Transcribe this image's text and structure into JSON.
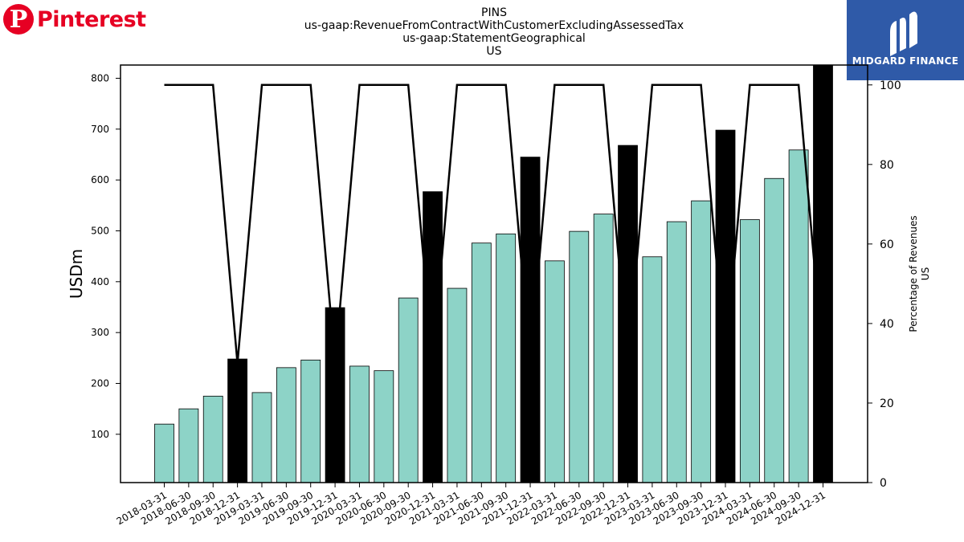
{
  "brand_left": {
    "icon": "P",
    "name": "Pinterest",
    "color": "#e60023"
  },
  "brand_right": {
    "name": "MIDGARD FINANCE",
    "color": "#2f5aa8"
  },
  "title_lines": [
    "PINS",
    "us-gaap:RevenueFromContractWithCustomerExcludingAssessedTax",
    "us-gaap:StatementGeographical",
    "US"
  ],
  "chart_data": {
    "type": "bar",
    "categories": [
      "2018-03-31",
      "2018-06-30",
      "2018-09-30",
      "2018-12-31",
      "2019-03-31",
      "2019-06-30",
      "2019-09-30",
      "2019-12-31",
      "2020-03-31",
      "2020-06-30",
      "2020-09-30",
      "2020-12-31",
      "2021-03-31",
      "2021-06-30",
      "2021-09-30",
      "2021-12-31",
      "2022-03-31",
      "2022-06-30",
      "2022-09-30",
      "2022-12-31",
      "2023-03-31",
      "2023-06-30",
      "2023-09-30",
      "2023-12-31",
      "2024-03-31",
      "2024-06-30",
      "2024-09-30",
      "2024-12-31"
    ],
    "values": [
      120,
      150,
      175,
      248,
      182,
      231,
      246,
      349,
      234,
      225,
      368,
      577,
      387,
      476,
      494,
      645,
      441,
      499,
      533,
      668,
      449,
      518,
      559,
      698,
      522,
      603,
      659,
      826
    ],
    "highlight_indices": [
      3,
      7,
      11,
      15,
      19,
      23,
      27
    ],
    "colors": {
      "bar": "#8dd3c7",
      "highlight": "#000000",
      "edge": "#000000",
      "line": "#000000"
    },
    "ylabel": "USDm",
    "ylim": [
      5,
      826
    ],
    "yticks": [
      100,
      200,
      300,
      400,
      500,
      600,
      700,
      800
    ],
    "y2label_lines": [
      "Percentage of Revenues",
      "US"
    ],
    "y2lim": [
      0,
      105
    ],
    "y2ticks": [
      0,
      20,
      40,
      60,
      80,
      100
    ],
    "line_series": [
      100,
      100,
      100,
      30,
      100,
      100,
      100,
      30,
      100,
      100,
      100,
      30,
      100,
      100,
      100,
      30,
      100,
      100,
      100,
      30,
      100,
      100,
      100,
      30,
      100,
      100,
      100,
      30
    ],
    "grid": false,
    "legend": "none"
  }
}
